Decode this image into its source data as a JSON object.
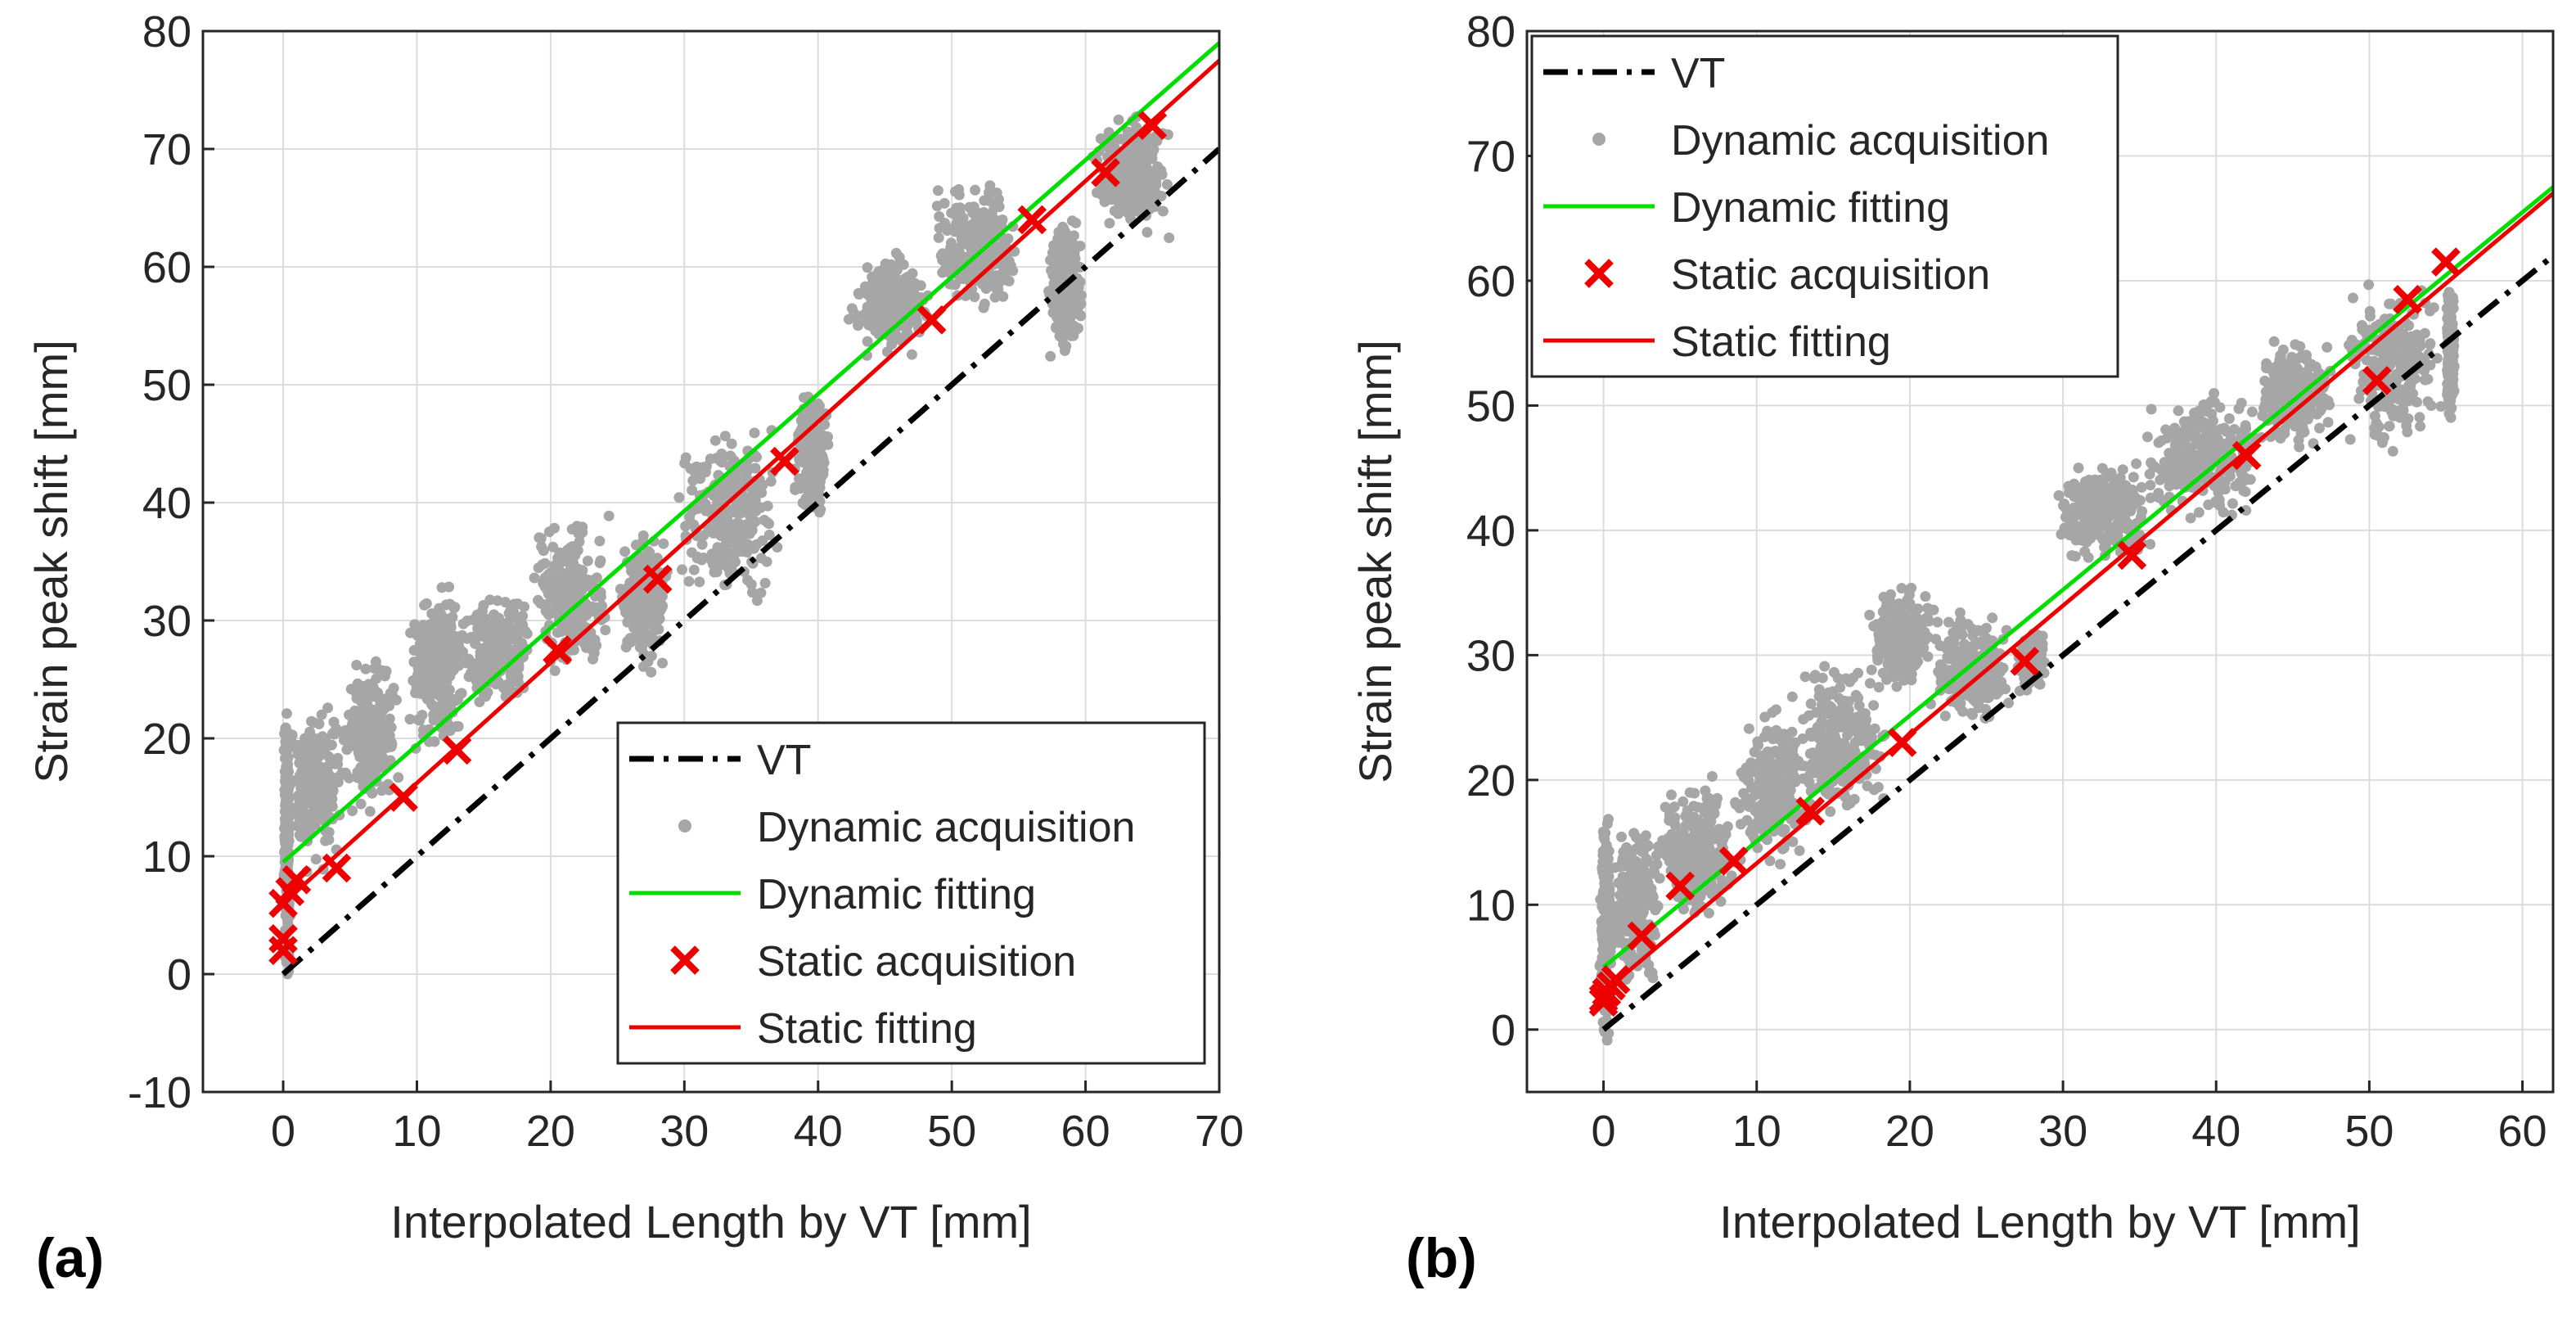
{
  "chart_data": [
    {
      "type": "scatter",
      "panel_label": "(a)",
      "xlabel": "Interpolated Length by VT [mm]",
      "ylabel": "Strain peak shift [mm]",
      "xlim": [
        -6,
        70
      ],
      "ylim": [
        -10,
        80
      ],
      "xticks": [
        0,
        10,
        20,
        30,
        40,
        50,
        60,
        70
      ],
      "yticks": [
        -10,
        0,
        10,
        20,
        30,
        40,
        50,
        60,
        70,
        80
      ],
      "grid": true,
      "legend_position": "bottom-right",
      "legend": [
        "VT",
        "Dynamic acquisition",
        "Dynamic fitting",
        "Static acquisition",
        "Static fitting"
      ],
      "series": [
        {
          "name": "VT",
          "kind": "line",
          "style": "dash-dot",
          "color": "#000000",
          "x": [
            0,
            70
          ],
          "y": [
            0,
            70
          ]
        },
        {
          "name": "Dynamic acquisition",
          "kind": "scatter-cloud",
          "color": "#a6a6a6",
          "clusters": [
            {
              "x": [
                0,
                0.6
              ],
              "y": [
                -2,
                25
              ]
            },
            {
              "x": [
                0,
                5
              ],
              "y": [
                8,
                24
              ]
            },
            {
              "x": [
                4,
                9
              ],
              "y": [
                12,
                28
              ]
            },
            {
              "x": [
                9,
                14
              ],
              "y": [
                18,
                34
              ]
            },
            {
              "x": [
                13,
                19
              ],
              "y": [
                22,
                33
              ]
            },
            {
              "x": [
                18,
                25
              ],
              "y": [
                24,
                40
              ]
            },
            {
              "x": [
                25,
                29
              ],
              "y": [
                25,
                38
              ]
            },
            {
              "x": [
                29,
                38
              ],
              "y": [
                30,
                48
              ]
            },
            {
              "x": [
                38,
                41
              ],
              "y": [
                38,
                50
              ]
            },
            {
              "x": [
                42,
                49
              ],
              "y": [
                52,
                62
              ]
            },
            {
              "x": [
                48,
                56
              ],
              "y": [
                55,
                68
              ]
            },
            {
              "x": [
                57,
                60
              ],
              "y": [
                52,
                65
              ]
            },
            {
              "x": [
                60,
                67
              ],
              "y": [
                62,
                74
              ]
            }
          ]
        },
        {
          "name": "Dynamic fitting",
          "kind": "line",
          "color": "#00dd00",
          "x": [
            0,
            70
          ],
          "y": [
            9.5,
            79
          ]
        },
        {
          "name": "Static acquisition",
          "kind": "marker",
          "marker": "x",
          "color": "#ee0000",
          "x": [
            0,
            0,
            0,
            0.5,
            1,
            4,
            9,
            13,
            20.5,
            28,
            37.5,
            48.5,
            56,
            61.5,
            65
          ],
          "y": [
            2,
            3,
            6,
            7,
            8,
            9,
            15,
            19,
            27.5,
            33.5,
            43.5,
            55.5,
            64,
            68,
            72
          ]
        },
        {
          "name": "Static fitting",
          "kind": "line",
          "color": "#ee0000",
          "x": [
            0,
            70
          ],
          "y": [
            6,
            77.5
          ]
        }
      ]
    },
    {
      "type": "scatter",
      "panel_label": "(b)",
      "xlabel": "Interpolated Length by VT [mm]",
      "ylabel": "Strain peak shift [mm]",
      "xlim": [
        -5,
        62
      ],
      "ylim": [
        -5,
        80
      ],
      "xticks": [
        0,
        10,
        20,
        30,
        40,
        50,
        60
      ],
      "yticks": [
        0,
        10,
        20,
        30,
        40,
        50,
        60,
        70,
        80
      ],
      "grid": true,
      "legend_position": "top-left",
      "legend": [
        "VT",
        "Dynamic acquisition",
        "Dynamic fitting",
        "Static acquisition",
        "Static fitting"
      ],
      "series": [
        {
          "name": "VT",
          "kind": "line",
          "style": "dash-dot",
          "color": "#000000",
          "x": [
            0,
            62
          ],
          "y": [
            0,
            62
          ]
        },
        {
          "name": "Dynamic acquisition",
          "kind": "scatter-cloud",
          "color": "#a6a6a6",
          "clusters": [
            {
              "x": [
                -0.3,
                0.6
              ],
              "y": [
                -3,
                19
              ]
            },
            {
              "x": [
                0,
                4
              ],
              "y": [
                3,
                17
              ]
            },
            {
              "x": [
                3,
                9
              ],
              "y": [
                8,
                21
              ]
            },
            {
              "x": [
                8,
                14
              ],
              "y": [
                12,
                27
              ]
            },
            {
              "x": [
                12,
                19
              ],
              "y": [
                16,
                30
              ]
            },
            {
              "x": [
                17,
                22
              ],
              "y": [
                27,
                36
              ]
            },
            {
              "x": [
                21,
                27
              ],
              "y": [
                24,
                34
              ]
            },
            {
              "x": [
                27,
                29
              ],
              "y": [
                27,
                32
              ]
            },
            {
              "x": [
                29,
                36
              ],
              "y": [
                37,
                46
              ]
            },
            {
              "x": [
                34,
                44
              ],
              "y": [
                40,
                52
              ]
            },
            {
              "x": [
                42,
                48
              ],
              "y": [
                46,
                56
              ]
            },
            {
              "x": [
                48,
                55
              ],
              "y": [
                45,
                61
              ]
            },
            {
              "x": [
                55,
                55.6
              ],
              "y": [
                48,
                60
              ]
            }
          ]
        },
        {
          "name": "Dynamic fitting",
          "kind": "line",
          "color": "#00dd00",
          "x": [
            0,
            62
          ],
          "y": [
            5,
            67.5
          ]
        },
        {
          "name": "Static acquisition",
          "kind": "marker",
          "marker": "x",
          "color": "#ee0000",
          "x": [
            0,
            0,
            0.2,
            0.5,
            0.8,
            2.5,
            5,
            8.5,
            13.5,
            19.5,
            27.5,
            34.5,
            42,
            50.5,
            52.5,
            55
          ],
          "y": [
            2.2,
            2.5,
            3,
            3.5,
            4,
            7.5,
            11.5,
            13.5,
            17.5,
            23,
            29.5,
            38,
            46,
            52,
            58.5,
            61.5
          ]
        },
        {
          "name": "Static fitting",
          "kind": "line",
          "color": "#ee0000",
          "x": [
            0,
            62
          ],
          "y": [
            3,
            67
          ]
        }
      ]
    }
  ]
}
